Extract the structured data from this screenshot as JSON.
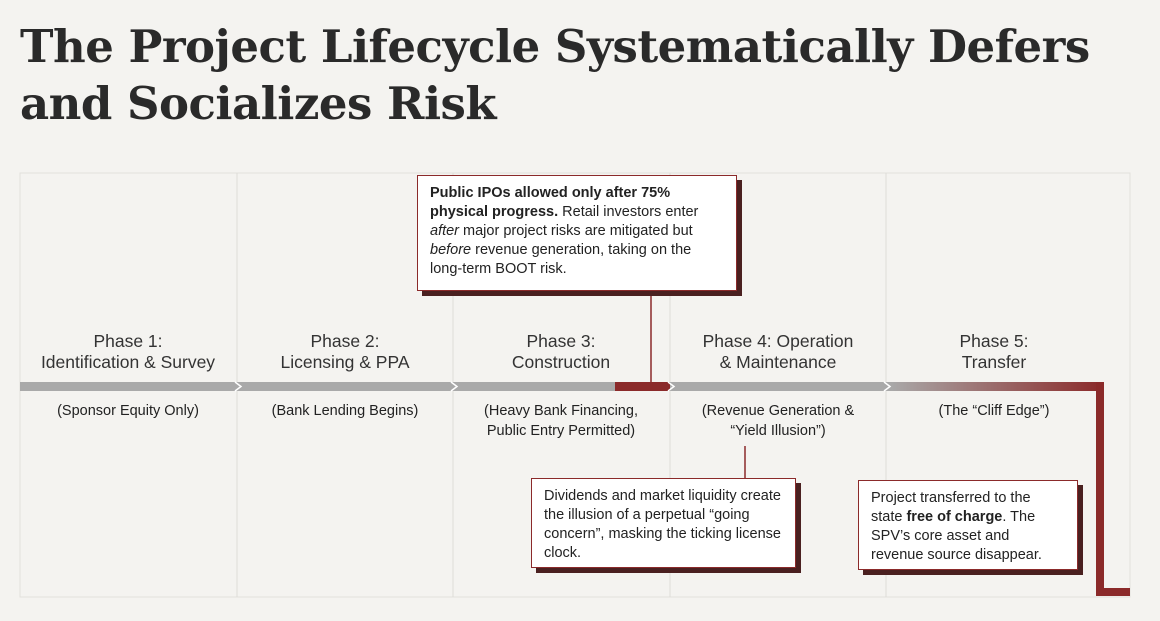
{
  "title": "The Project Lifecycle Systematically Defers\nand Socializes Risk",
  "phases": [
    {
      "name": "Phase 1:\nIdentification & Survey",
      "funding": "(Sponsor Equity Only)"
    },
    {
      "name": "Phase 2:\nLicensing & PPA",
      "funding": "(Bank Lending Begins)"
    },
    {
      "name": "Phase 3:\nConstruction",
      "funding": "(Heavy Bank Financing,\nPublic Entry Permitted)"
    },
    {
      "name": "Phase 4: Operation\n& Maintenance",
      "funding": "(Revenue Generation &\n“Yield Illusion”)"
    },
    {
      "name": "Phase 5:\nTransfer",
      "funding": "(The “Cliff Edge”)"
    }
  ],
  "callouts": [
    {
      "parts": [
        {
          "text": "Public IPOs allowed only after 75% physical progress.",
          "bold": true
        },
        {
          "text": " Retail investors enter "
        },
        {
          "text": "after",
          "italic": true
        },
        {
          "text": " major project risks are mitigated but "
        },
        {
          "text": "before",
          "italic": true
        },
        {
          "text": " revenue generation, taking on the long-term BOOT risk."
        }
      ]
    },
    {
      "parts": [
        {
          "text": "Dividends and market liquidity create the illusion of a perpetual “going concern”, masking the ticking license clock."
        }
      ]
    },
    {
      "parts": [
        {
          "text": "Project transferred to the state "
        },
        {
          "text": "free of charge",
          "bold": true
        },
        {
          "text": ". The SPV’s core asset and revenue source disappear."
        }
      ]
    }
  ]
}
